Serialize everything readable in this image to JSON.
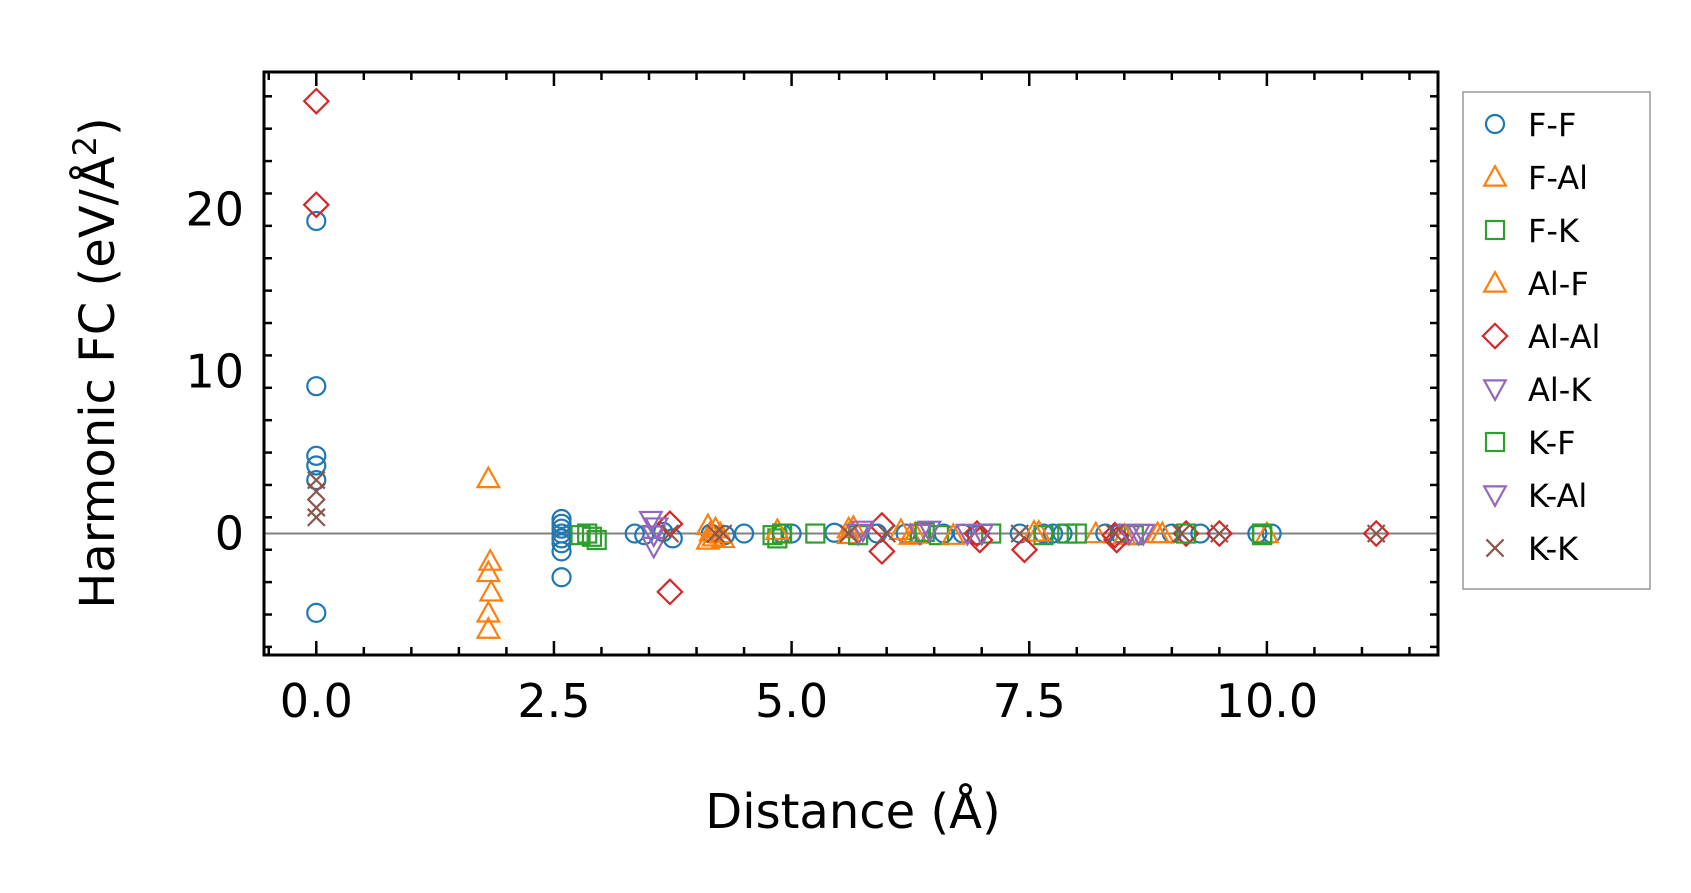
{
  "chart_data": {
    "type": "scatter",
    "title": "",
    "xlabel": "Distance (Å)",
    "ylabel": {
      "main": "Harmonic FC (eV/Å",
      "sup": "2",
      "close": ")"
    },
    "xlim": [
      -0.55,
      11.8
    ],
    "ylim": [
      -7.5,
      28.5
    ],
    "xticks": [
      0.0,
      2.5,
      5.0,
      7.5,
      10.0
    ],
    "xtick_labels": [
      "0.0",
      "2.5",
      "5.0",
      "7.5",
      "10.0"
    ],
    "yticks": [
      0,
      10,
      20
    ],
    "ytick_labels": [
      "0",
      "10",
      "20"
    ],
    "zero_line": true,
    "grid": false,
    "legend_position": "outside-right",
    "series": [
      {
        "name": "F-F",
        "marker": "circle",
        "color": "#1f77b4",
        "points": [
          [
            0,
            19.3
          ],
          [
            0,
            9.1
          ],
          [
            0,
            4.8
          ],
          [
            0,
            4.2
          ],
          [
            0,
            3.3
          ],
          [
            0,
            -4.9
          ],
          [
            2.58,
            0.9
          ],
          [
            2.58,
            0.6
          ],
          [
            2.58,
            0.3
          ],
          [
            2.58,
            0
          ],
          [
            2.58,
            -0.3
          ],
          [
            2.58,
            -0.6
          ],
          [
            2.58,
            -1.1
          ],
          [
            2.58,
            -2.7
          ],
          [
            3.35,
            0
          ],
          [
            3.45,
            -0.1
          ],
          [
            3.65,
            0.1
          ],
          [
            3.75,
            -0.3
          ],
          [
            4.15,
            0
          ],
          [
            4.3,
            -0.1
          ],
          [
            4.5,
            0
          ],
          [
            4.9,
            0
          ],
          [
            5.0,
            0
          ],
          [
            5.45,
            0.05
          ],
          [
            5.9,
            0
          ],
          [
            6.2,
            0
          ],
          [
            6.6,
            0
          ],
          [
            6.8,
            0
          ],
          [
            6.95,
            -0.1
          ],
          [
            7.4,
            0
          ],
          [
            7.65,
            0
          ],
          [
            7.75,
            0
          ],
          [
            7.85,
            0
          ],
          [
            8.3,
            0
          ],
          [
            8.45,
            0
          ],
          [
            9.0,
            0
          ],
          [
            9.3,
            0
          ],
          [
            9.9,
            0
          ],
          [
            10.05,
            0
          ]
        ]
      },
      {
        "name": "F-Al",
        "marker": "triangle-up",
        "color": "#ff7f0e",
        "points": [
          [
            1.81,
            3.4
          ],
          [
            1.83,
            -1.7
          ],
          [
            1.81,
            -2.4
          ],
          [
            1.84,
            -3.6
          ],
          [
            1.81,
            -4.9
          ],
          [
            1.81,
            -5.9
          ],
          [
            4.12,
            0.5
          ],
          [
            4.15,
            0.1
          ],
          [
            4.18,
            -0.2
          ],
          [
            4.12,
            -0.4
          ],
          [
            4.25,
            0
          ],
          [
            5.6,
            0.3
          ],
          [
            5.6,
            -0.05
          ],
          [
            6.15,
            0.2
          ],
          [
            6.25,
            -0.1
          ],
          [
            7.6,
            0.1
          ],
          [
            8.2,
            0
          ],
          [
            8.85,
            0
          ],
          [
            10.0,
            0
          ]
        ]
      },
      {
        "name": "F-K",
        "marker": "square",
        "color": "#2ca02c",
        "points": [
          [
            2.78,
            -0.1
          ],
          [
            2.9,
            -0.2
          ],
          [
            2.95,
            -0.4
          ],
          [
            4.8,
            -0.1
          ],
          [
            4.85,
            -0.3
          ],
          [
            5.25,
            0
          ],
          [
            5.7,
            -0.1
          ],
          [
            6.35,
            0
          ],
          [
            6.55,
            -0.1
          ],
          [
            7.1,
            0
          ],
          [
            7.65,
            -0.1
          ],
          [
            8.0,
            0
          ],
          [
            8.6,
            -0.1
          ],
          [
            9.95,
            -0.1
          ]
        ]
      },
      {
        "name": "Al-F",
        "marker": "triangle-up",
        "color": "#ff7f0e",
        "points": [
          [
            4.2,
            0.3
          ],
          [
            4.28,
            -0.3
          ],
          [
            4.85,
            0.2
          ],
          [
            5.65,
            0.4
          ],
          [
            6.3,
            0
          ],
          [
            6.7,
            -0.1
          ],
          [
            7.55,
            0.1
          ],
          [
            8.5,
            -0.1
          ],
          [
            8.9,
            0
          ]
        ]
      },
      {
        "name": "Al-Al",
        "marker": "diamond",
        "color": "#d62728",
        "points": [
          [
            0,
            26.7
          ],
          [
            0,
            20.3
          ],
          [
            3.72,
            0.6
          ],
          [
            3.72,
            -3.6
          ],
          [
            5.95,
            0.5
          ],
          [
            5.95,
            -1.1
          ],
          [
            6.95,
            0
          ],
          [
            6.98,
            -0.4
          ],
          [
            7.45,
            -1.0
          ],
          [
            8.4,
            -0.1
          ],
          [
            8.42,
            -0.4
          ],
          [
            9.15,
            0
          ],
          [
            9.5,
            0
          ],
          [
            11.15,
            0
          ]
        ]
      },
      {
        "name": "Al-K",
        "marker": "triangle-down",
        "color": "#9467bd",
        "points": [
          [
            3.52,
            0.8
          ],
          [
            3.55,
            -0.1
          ],
          [
            3.55,
            -0.8
          ],
          [
            5.7,
            0
          ],
          [
            6.35,
            0
          ],
          [
            6.85,
            0
          ],
          [
            8.7,
            0
          ]
        ]
      },
      {
        "name": "K-F",
        "marker": "square",
        "color": "#2ca02c",
        "points": [
          [
            2.85,
            0
          ],
          [
            4.9,
            0
          ],
          [
            6.4,
            0.1
          ],
          [
            7.9,
            0
          ],
          [
            9.15,
            0
          ],
          [
            9.95,
            0
          ]
        ]
      },
      {
        "name": "K-Al",
        "marker": "triangle-down",
        "color": "#9467bd",
        "points": [
          [
            3.58,
            0.4
          ],
          [
            5.75,
            0.2
          ],
          [
            6.45,
            0.2
          ],
          [
            7.0,
            0
          ],
          [
            8.55,
            0
          ],
          [
            8.65,
            0
          ]
        ]
      },
      {
        "name": "K-K",
        "marker": "x",
        "color": "#8c564b",
        "points": [
          [
            0,
            3.3
          ],
          [
            0,
            2.6
          ],
          [
            0,
            1.6
          ],
          [
            0,
            1.0
          ],
          [
            3.72,
            0
          ],
          [
            4.2,
            0
          ],
          [
            4.28,
            0
          ],
          [
            5.6,
            0
          ],
          [
            6.0,
            0
          ],
          [
            7.4,
            0
          ],
          [
            8.4,
            0
          ],
          [
            9.1,
            0
          ],
          [
            9.5,
            0
          ],
          [
            11.15,
            0
          ]
        ]
      }
    ]
  }
}
